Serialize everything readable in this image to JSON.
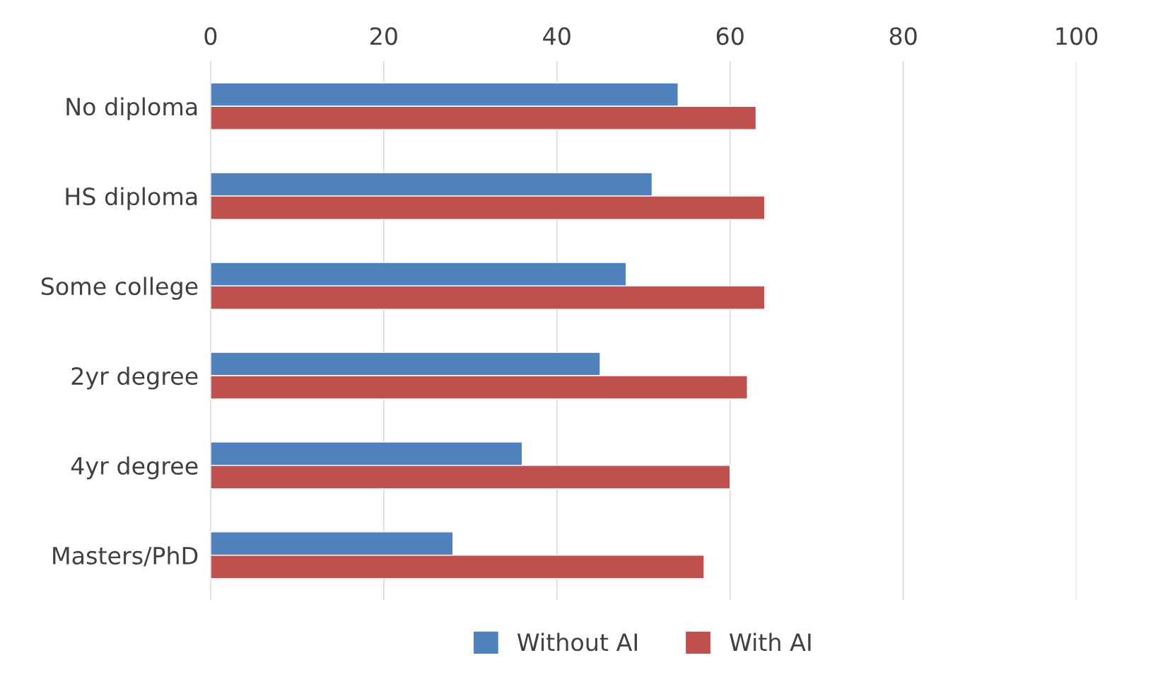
{
  "chart_data": {
    "type": "bar",
    "orientation": "horizontal",
    "categories": [
      "No diploma",
      "HS diploma",
      "Some college",
      "2yr degree",
      "4yr degree",
      "Masters/PhD"
    ],
    "series": [
      {
        "name": "Without AI",
        "color": "#4f81bd",
        "values": [
          54,
          51,
          48,
          45,
          36,
          28
        ]
      },
      {
        "name": "With AI",
        "color": "#c0504d",
        "values": [
          63,
          64,
          64,
          62,
          60,
          57
        ]
      }
    ],
    "xlim": [
      0,
      100
    ],
    "xticks": [
      0,
      20,
      40,
      60,
      80,
      100
    ],
    "grid": "x",
    "legend": "bottom"
  }
}
